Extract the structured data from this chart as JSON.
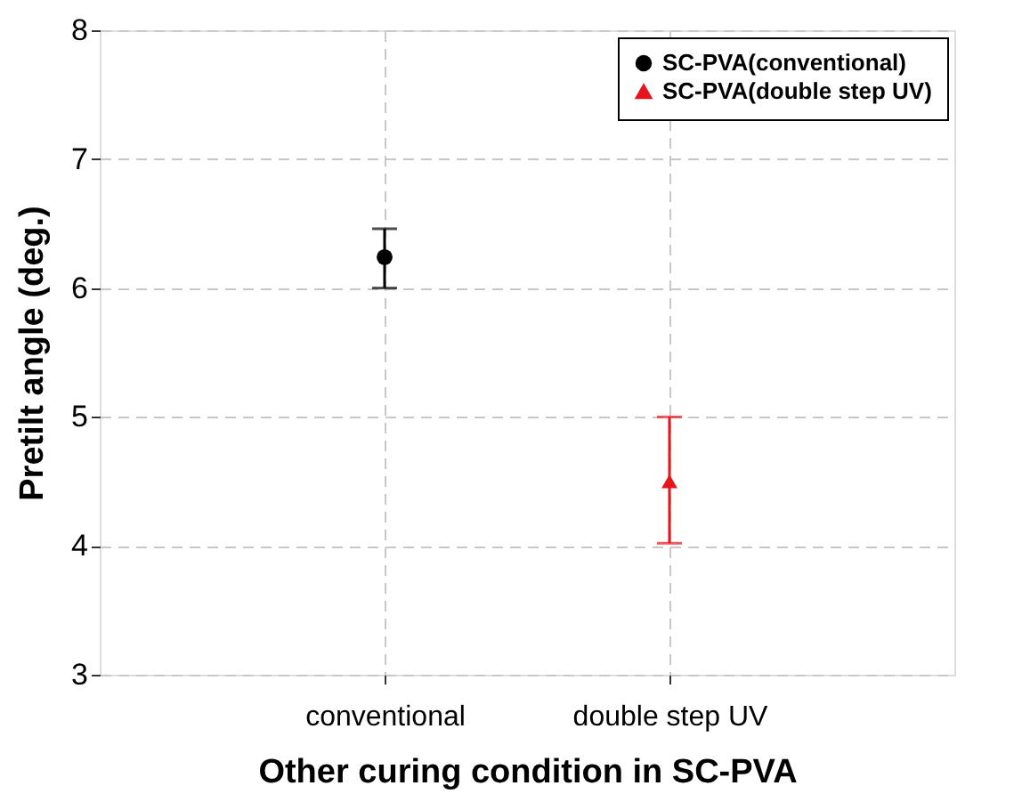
{
  "chart_data": {
    "type": "scatter",
    "xlabel": "Other curing condition in SC-PVA",
    "ylabel": "Pretilt angle (deg.)",
    "categories": [
      "conventional",
      "double step UV"
    ],
    "series": [
      {
        "name": "SC-PVA(conventional)",
        "color": "#000000",
        "marker": "circle",
        "values": [
          6.24,
          null
        ],
        "errors": [
          [
            6.0,
            6.46
          ],
          null
        ]
      },
      {
        "name": "SC-PVA(double step UV)",
        "color": "#e8141c",
        "marker": "triangle",
        "values": [
          null,
          4.5
        ],
        "errors": [
          null,
          [
            4.02,
            5.0
          ]
        ]
      }
    ],
    "ylim": [
      3,
      8
    ],
    "yticks": [
      3,
      4,
      5,
      6,
      7,
      8
    ],
    "grid": true,
    "legend": "top right"
  }
}
